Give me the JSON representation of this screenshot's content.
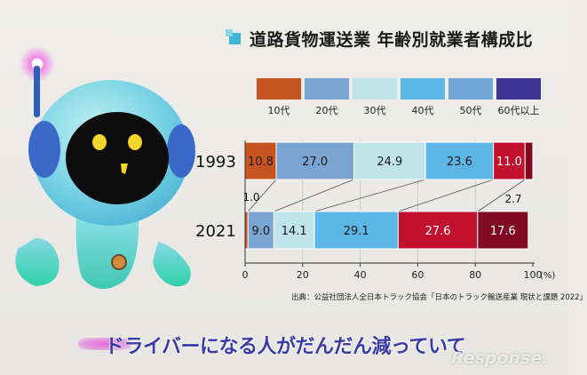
{
  "slide": {
    "title": "道路貨物運送業 年齢別就業者構成比",
    "source": "出典：公益社団法人全日本トラック協会「日本のトラック輸送産業 現状と課題 2022」",
    "subtitle": "ドライバーになる人がだんだん減っていて",
    "watermark": "Response."
  },
  "colors": {
    "10代": "#c75420",
    "20代": "#7aa5d2",
    "30代": "#bfe4ea",
    "40代": "#5cb6e6",
    "50代": "#c2102f",
    "60代以上": "#800a22",
    "legend_50代": "#6fa6d6",
    "legend_60代以上": "#3d3392"
  },
  "chart_data": {
    "type": "bar",
    "orientation": "horizontal-stacked",
    "title": "道路貨物運送業 年齢別就業者構成比",
    "categories": [
      "1993",
      "2021"
    ],
    "series": [
      {
        "name": "10代",
        "values": [
          10.8,
          1.0
        ]
      },
      {
        "name": "20代",
        "values": [
          27.0,
          9.0
        ]
      },
      {
        "name": "30代",
        "values": [
          24.9,
          14.1
        ]
      },
      {
        "name": "40代",
        "values": [
          23.6,
          29.1
        ]
      },
      {
        "name": "50代",
        "values": [
          11.0,
          27.6
        ]
      },
      {
        "name": "60代以上",
        "values": [
          2.7,
          17.6
        ]
      }
    ],
    "xlim": [
      0,
      100
    ],
    "xticks": [
      0,
      20,
      40,
      60,
      80,
      100
    ],
    "xtick_labels": [
      "0",
      "20",
      "40",
      "60",
      "80",
      "100"
    ],
    "xunit": "(%)",
    "legend_position": "top",
    "annotations": [
      {
        "text": "1.0",
        "refers_to": "2021 10代"
      },
      {
        "text": "2.7",
        "refers_to": "1993 60代以上"
      }
    ]
  }
}
